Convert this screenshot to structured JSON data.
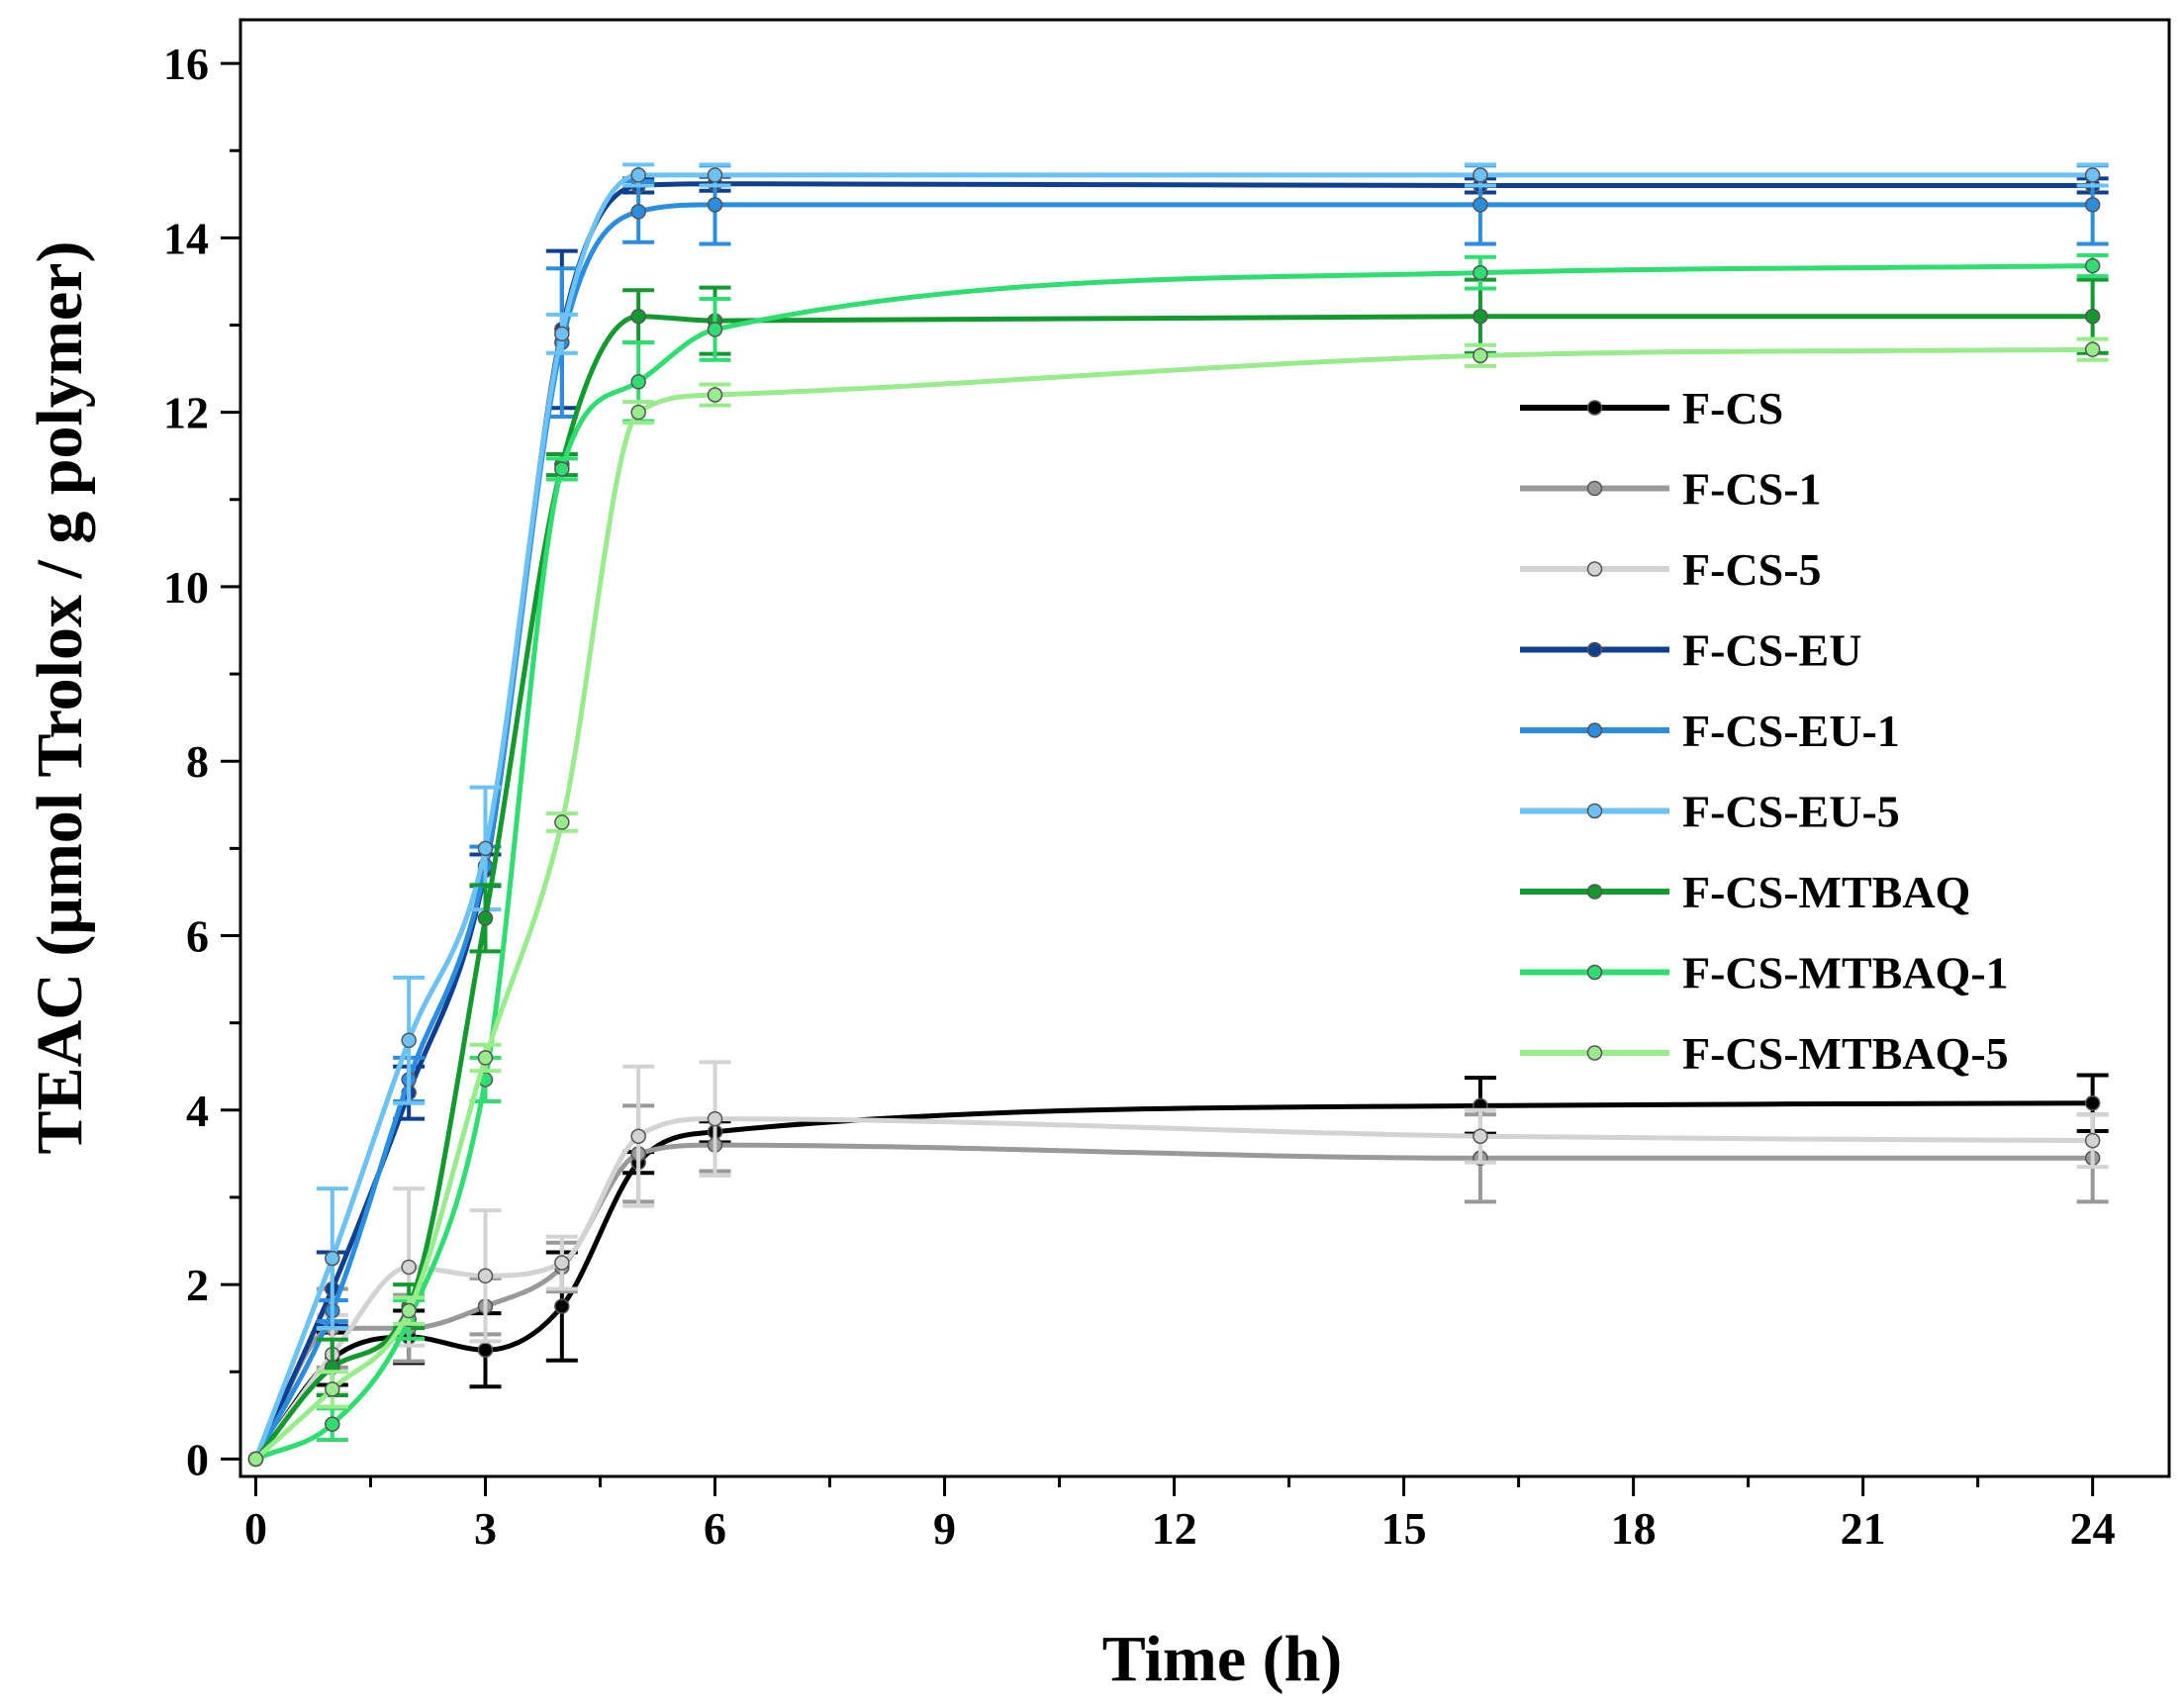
{
  "chart_data": {
    "type": "line",
    "title": "",
    "xlabel": "Time (h)",
    "ylabel": "TEAC (μmol Trolox / g polymer)",
    "xlim": [
      -0.2,
      25.0
    ],
    "ylim": [
      -0.2,
      16.5
    ],
    "xticks": [
      0,
      3,
      6,
      9,
      12,
      15,
      18,
      21,
      24
    ],
    "yticks": [
      0,
      2,
      4,
      6,
      8,
      10,
      12,
      14,
      16
    ],
    "xtick_labels": [
      "0",
      "3",
      "6",
      "9",
      "12",
      "15",
      "18",
      "21",
      "24"
    ],
    "ytick_labels": [
      "0",
      "2",
      "4",
      "6",
      "8",
      "10",
      "12",
      "14",
      "16"
    ],
    "grid": false,
    "legend_position": "right-middle",
    "x": [
      0,
      1,
      2,
      3,
      4,
      5,
      6,
      16,
      24
    ],
    "series": [
      {
        "name": "F-CS",
        "color": "#000000",
        "values": [
          0,
          1.15,
          1.4,
          1.25,
          1.75,
          3.4,
          3.75,
          4.05,
          4.08
        ],
        "errors": [
          0,
          0.3,
          0.3,
          0.42,
          0.62,
          0.12,
          0.12,
          0.32,
          0.32
        ]
      },
      {
        "name": "F-CS-1",
        "color": "#999999",
        "values": [
          0,
          1.5,
          1.5,
          1.75,
          2.2,
          3.5,
          3.6,
          3.45,
          3.45
        ],
        "errors": [
          0,
          0.45,
          0.38,
          0.32,
          0.28,
          0.55,
          0.3,
          0.5,
          0.5
        ]
      },
      {
        "name": "F-CS-5",
        "color": "#d3d3d3",
        "values": [
          0,
          1.2,
          2.2,
          2.1,
          2.25,
          3.7,
          3.9,
          3.7,
          3.65
        ],
        "errors": [
          0,
          0.45,
          0.9,
          0.75,
          0.3,
          0.8,
          0.65,
          0.3,
          0.3
        ]
      },
      {
        "name": "F-CS-EU",
        "color": "#0f3f8f",
        "values": [
          0,
          1.95,
          4.2,
          6.75,
          12.95,
          14.6,
          14.62,
          14.6,
          14.6
        ],
        "errors": [
          0,
          0.42,
          0.3,
          0.18,
          0.9,
          0.08,
          0.08,
          0.08,
          0.08
        ]
      },
      {
        "name": "F-CS-EU-1",
        "color": "#2b8de0",
        "values": [
          0,
          1.7,
          4.35,
          6.8,
          12.8,
          14.3,
          14.38,
          14.38,
          14.38
        ],
        "errors": [
          0,
          0.12,
          0.25,
          0.22,
          0.85,
          0.35,
          0.45,
          0.45,
          0.45
        ]
      },
      {
        "name": "F-CS-EU-5",
        "color": "#6cc1f5",
        "values": [
          0,
          2.3,
          4.8,
          7.0,
          12.9,
          14.72,
          14.72,
          14.72,
          14.72
        ],
        "errors": [
          0,
          0.8,
          0.72,
          0.7,
          0.22,
          0.12,
          0.12,
          0.12,
          0.12
        ]
      },
      {
        "name": "F-CS-MTBAQ",
        "color": "#139a2f",
        "values": [
          0,
          1.05,
          1.75,
          6.2,
          11.4,
          13.1,
          13.05,
          13.1,
          13.1
        ],
        "errors": [
          0,
          0.32,
          0.25,
          0.38,
          0.12,
          0.3,
          0.38,
          0.42,
          0.42
        ]
      },
      {
        "name": "F-CS-MTBAQ-1",
        "color": "#2fdd70",
        "values": [
          0,
          0.4,
          1.6,
          4.35,
          11.35,
          12.35,
          12.95,
          13.6,
          13.68
        ],
        "errors": [
          0,
          0.18,
          0.22,
          0.25,
          0.12,
          0.45,
          0.35,
          0.18,
          0.12
        ]
      },
      {
        "name": "F-CS-MTBAQ-5",
        "color": "#98ec8c",
        "values": [
          0,
          0.8,
          1.7,
          4.6,
          7.3,
          12.0,
          12.2,
          12.65,
          12.72
        ],
        "errors": [
          0,
          0.2,
          0.15,
          0.15,
          0.1,
          0.12,
          0.12,
          0.12,
          0.12
        ]
      }
    ]
  }
}
